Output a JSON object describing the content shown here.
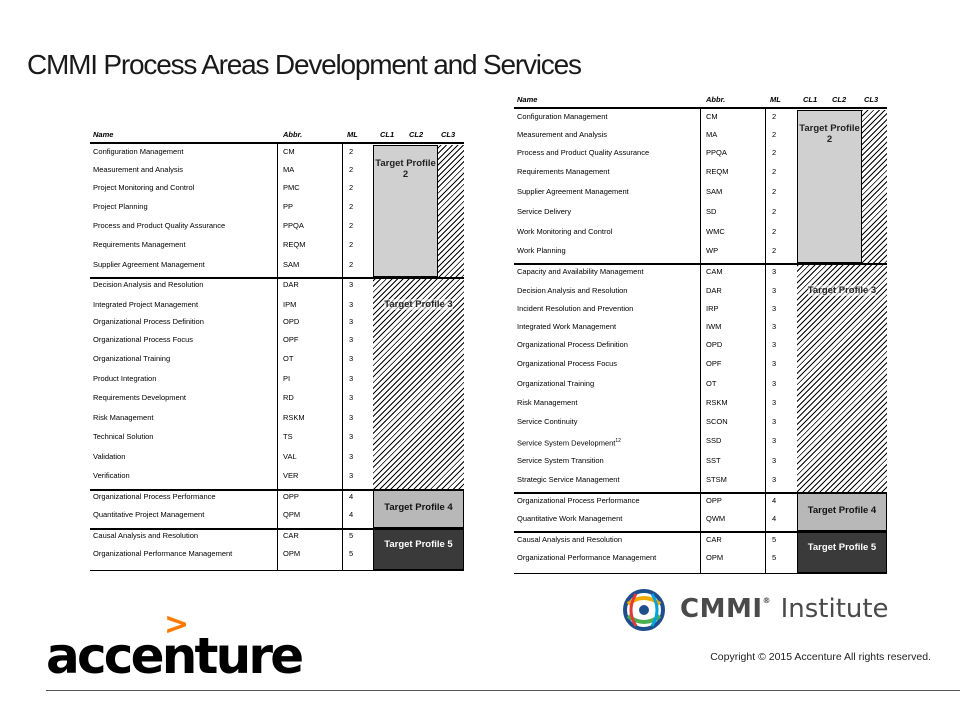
{
  "title": "CMMI Process Areas Development and Services",
  "headers": {
    "name": "Name",
    "abbr": "Abbr.",
    "ml": "ML",
    "cl1": "CL1",
    "cl2": "CL2",
    "cl3": "CL3"
  },
  "tables": [
    {
      "id": "development",
      "rows": [
        {
          "name": "Configuration Management",
          "abbr": "CM",
          "ml": "2"
        },
        {
          "name": "Measurement and Analysis",
          "abbr": "MA",
          "ml": "2"
        },
        {
          "name": "Project Monitoring and Control",
          "abbr": "PMC",
          "ml": "2"
        },
        {
          "name": "Project Planning",
          "abbr": "PP",
          "ml": "2"
        },
        {
          "name": "Process and Product Quality Assurance",
          "abbr": "PPQA",
          "ml": "2"
        },
        {
          "name": "Requirements Management",
          "abbr": "REQM",
          "ml": "2"
        },
        {
          "name": "Supplier Agreement Management",
          "abbr": "SAM",
          "ml": "2"
        },
        {
          "name": "Decision Analysis and Resolution",
          "abbr": "DAR",
          "ml": "3"
        },
        {
          "name": "Integrated Project Management",
          "abbr": "IPM",
          "ml": "3"
        },
        {
          "name": "Organizational Process Definition",
          "abbr": "OPD",
          "ml": "3"
        },
        {
          "name": "Organizational Process Focus",
          "abbr": "OPF",
          "ml": "3"
        },
        {
          "name": "Organizational Training",
          "abbr": "OT",
          "ml": "3"
        },
        {
          "name": "Product Integration",
          "abbr": "PI",
          "ml": "3"
        },
        {
          "name": "Requirements Development",
          "abbr": "RD",
          "ml": "3"
        },
        {
          "name": "Risk Management",
          "abbr": "RSKM",
          "ml": "3"
        },
        {
          "name": "Technical Solution",
          "abbr": "TS",
          "ml": "3"
        },
        {
          "name": "Validation",
          "abbr": "VAL",
          "ml": "3"
        },
        {
          "name": "Verification",
          "abbr": "VER",
          "ml": "3"
        },
        {
          "name": "Organizational Process Performance",
          "abbr": "OPP",
          "ml": "4"
        },
        {
          "name": "Quantitative Project Management",
          "abbr": "QPM",
          "ml": "4"
        },
        {
          "name": "Causal Analysis and Resolution",
          "abbr": "CAR",
          "ml": "5"
        },
        {
          "name": "Organizational Performance Management",
          "abbr": "OPM",
          "ml": "5"
        }
      ],
      "profiles": [
        "Target Profile 2",
        "Target Profile 3",
        "Target Profile 4",
        "Target Profile 5"
      ]
    },
    {
      "id": "services",
      "rows": [
        {
          "name": "Configuration Management",
          "abbr": "CM",
          "ml": "2"
        },
        {
          "name": "Measurement and Analysis",
          "abbr": "MA",
          "ml": "2"
        },
        {
          "name": "Process and Product Quality Assurance",
          "abbr": "PPQA",
          "ml": "2"
        },
        {
          "name": "Requirements Management",
          "abbr": "REQM",
          "ml": "2"
        },
        {
          "name": "Supplier Agreement Management",
          "abbr": "SAM",
          "ml": "2"
        },
        {
          "name": "Service Delivery",
          "abbr": "SD",
          "ml": "2"
        },
        {
          "name": "Work Monitoring and Control",
          "abbr": "WMC",
          "ml": "2"
        },
        {
          "name": "Work Planning",
          "abbr": "WP",
          "ml": "2"
        },
        {
          "name": "Capacity and Availability Management",
          "abbr": "CAM",
          "ml": "3"
        },
        {
          "name": "Decision Analysis and Resolution",
          "abbr": "DAR",
          "ml": "3"
        },
        {
          "name": "Incident Resolution and Prevention",
          "abbr": "IRP",
          "ml": "3"
        },
        {
          "name": "Integrated Work Management",
          "abbr": "IWM",
          "ml": "3"
        },
        {
          "name": "Organizational Process Definition",
          "abbr": "OPD",
          "ml": "3"
        },
        {
          "name": "Organizational Process Focus",
          "abbr": "OPF",
          "ml": "3"
        },
        {
          "name": "Organizational Training",
          "abbr": "OT",
          "ml": "3"
        },
        {
          "name": "Risk Management",
          "abbr": "RSKM",
          "ml": "3"
        },
        {
          "name": "Service Continuity",
          "abbr": "SCON",
          "ml": "3"
        },
        {
          "name": "Service System Development",
          "sup": "12",
          "abbr": "SSD",
          "ml": "3"
        },
        {
          "name": "Service System Transition",
          "abbr": "SST",
          "ml": "3"
        },
        {
          "name": "Strategic Service Management",
          "abbr": "STSM",
          "ml": "3"
        },
        {
          "name": "Organizational Process Performance",
          "abbr": "OPP",
          "ml": "4"
        },
        {
          "name": "Quantitative Work Management",
          "abbr": "QWM",
          "ml": "4"
        },
        {
          "name": "Causal Analysis and Resolution",
          "abbr": "CAR",
          "ml": "5"
        },
        {
          "name": "Organizational Performance Management",
          "abbr": "OPM",
          "ml": "5"
        }
      ],
      "profiles": [
        "Target Profile 2",
        "Target Profile 3",
        "Target Profile 4",
        "Target Profile 5"
      ]
    }
  ],
  "cmmi_logo": {
    "icon": "cmmi-globe-icon",
    "brand": "CMMI",
    "reg": "®",
    "institute": "Institute"
  },
  "accenture_logo": {
    "greater": ">",
    "word": "accenture"
  },
  "copyright": "Copyright © 2015 Accenture All rights reserved.",
  "colors": {
    "accent_orange": "#ff7a00",
    "profile2_fill": "#d0d0d0",
    "profile4_fill": "#b8b8b8",
    "profile5_fill": "#3a3a3a"
  }
}
